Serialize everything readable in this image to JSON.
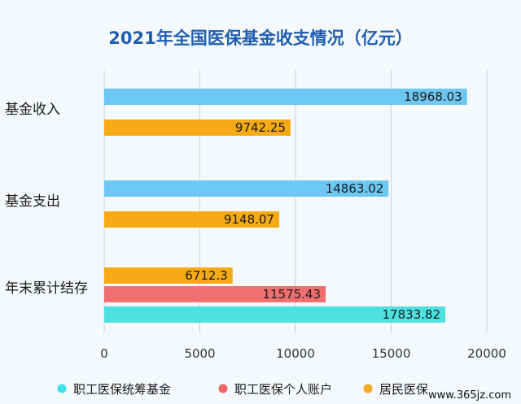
{
  "chart_data": {
    "type": "bar",
    "orientation": "horizontal",
    "title": "2021年全国医保基金收支情况（亿元）",
    "xlim": [
      0,
      20000
    ],
    "xticks": [
      0,
      5000,
      10000,
      15000,
      20000
    ],
    "grid": "vertical",
    "legend_position": "bottom",
    "groups": [
      {
        "label": "基金收入",
        "bars": [
          {
            "series": "职工医保统筹基金",
            "value": 18968.03,
            "label": "18968.03"
          },
          {
            "series": "居民医保",
            "value": 9742.25,
            "label": "9742.25"
          }
        ]
      },
      {
        "label": "基金支出",
        "bars": [
          {
            "series": "职工医保统筹基金",
            "value": 14863.02,
            "label": "14863.02"
          },
          {
            "series": "居民医保",
            "value": 9148.07,
            "label": "9148.07"
          }
        ]
      },
      {
        "label": "年末累计结存",
        "bars": [
          {
            "series": "居民医保",
            "value": 6712.3,
            "label": "6712.3"
          },
          {
            "series": "职工医保个人账户",
            "value": 11575.43,
            "label": "11575.43"
          },
          {
            "series": "职工医保统筹基金",
            "value": 17833.82,
            "label": "17833.82"
          }
        ]
      }
    ],
    "series": [
      {
        "name": "职工医保统筹基金",
        "color": "#4fe0e0",
        "legend_color": "#3ee0e8"
      },
      {
        "name": "职工医保个人账户",
        "color": "#f07070",
        "legend_color": "#ee6666"
      },
      {
        "name": "居民医保",
        "color": "#f5aa16",
        "legend_color": "#f5a623"
      }
    ],
    "colors_by_group": {
      "基金收入": {
        "职工医保统筹基金": "#6cc8f2"
      },
      "基金支出": {
        "职工医保统筹基金": "#6cc8f2"
      }
    }
  },
  "watermark": "www.365jz.com"
}
